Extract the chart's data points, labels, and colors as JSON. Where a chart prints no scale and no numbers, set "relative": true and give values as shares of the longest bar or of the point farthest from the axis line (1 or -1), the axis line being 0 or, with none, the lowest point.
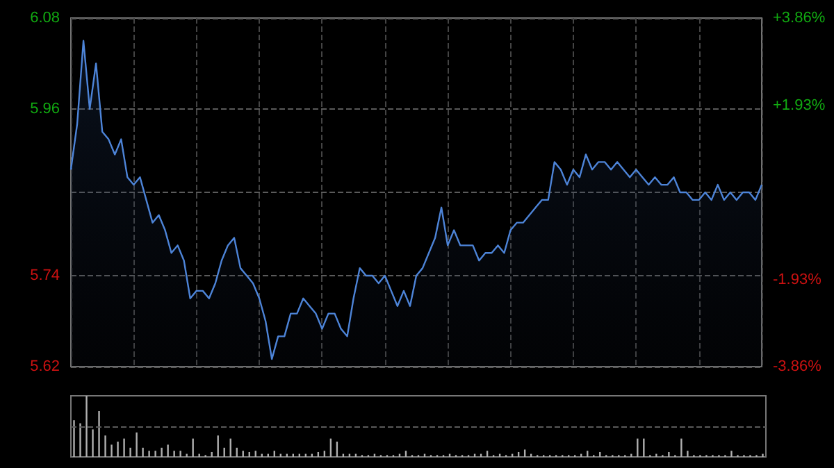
{
  "chart_data": [
    {
      "type": "area",
      "categories": [
        null,
        null,
        null,
        null,
        null,
        null,
        null,
        null,
        null,
        null,
        null,
        null,
        null,
        null,
        null,
        null,
        null,
        null,
        null,
        null,
        null,
        null,
        null,
        null,
        null,
        null,
        null,
        null,
        null,
        null,
        null,
        null,
        null,
        null,
        null,
        null,
        null,
        null,
        null,
        null,
        null,
        null,
        null,
        null,
        null,
        null,
        null,
        null,
        null,
        null,
        null,
        null,
        null,
        null,
        null,
        null,
        null,
        null,
        null,
        null,
        null,
        null,
        null,
        null,
        null,
        null,
        null,
        null,
        null,
        null,
        null,
        null,
        null,
        null,
        null,
        null,
        null,
        null,
        null,
        null,
        null,
        null,
        null,
        null,
        null,
        null,
        null,
        null,
        null,
        null,
        null,
        null,
        null,
        null,
        null,
        null,
        null,
        null,
        null,
        null,
        null,
        null,
        null,
        null,
        null,
        null,
        null,
        null,
        null,
        null,
        null
      ],
      "series": [
        {
          "color": "#4d84d8",
          "values": [
            5.88,
            5.94,
            6.05,
            5.96,
            6.02,
            5.93,
            5.92,
            5.9,
            5.92,
            5.87,
            5.86,
            5.87,
            5.84,
            5.81,
            5.82,
            5.8,
            5.77,
            5.78,
            5.76,
            5.71,
            5.72,
            5.72,
            5.71,
            5.73,
            5.76,
            5.78,
            5.79,
            5.75,
            5.74,
            5.73,
            5.71,
            5.68,
            5.63,
            5.66,
            5.66,
            5.69,
            5.69,
            5.71,
            5.7,
            5.69,
            5.67,
            5.69,
            5.69,
            5.67,
            5.66,
            5.71,
            5.75,
            5.74,
            5.74,
            5.73,
            5.74,
            5.72,
            5.7,
            5.72,
            5.7,
            5.74,
            5.75,
            5.77,
            5.79,
            5.83,
            5.78,
            5.8,
            5.78,
            5.78,
            5.78,
            5.76,
            5.77,
            5.77,
            5.78,
            5.77,
            5.8,
            5.81,
            5.81,
            5.82,
            5.83,
            5.84,
            5.84,
            5.89,
            5.88,
            5.86,
            5.88,
            5.87,
            5.9,
            5.88,
            5.89,
            5.89,
            5.88,
            5.89,
            5.88,
            5.87,
            5.88,
            5.87,
            5.86,
            5.87,
            5.86,
            5.86,
            5.87,
            5.85,
            5.85,
            5.84,
            5.84,
            5.85,
            5.84,
            5.86,
            5.84,
            5.85,
            5.84,
            5.85,
            5.85,
            5.84,
            5.86
          ]
        }
      ],
      "ylim": [
        5.62,
        6.08
      ],
      "yticks": [
        5.62,
        5.74,
        {
          "value": 5.85,
          "label": null
        },
        5.96,
        6.08
      ],
      "y2lim": [
        -3.86,
        3.86
      ],
      "y2ticks": [
        {
          "value": -3.86,
          "label": "-3.86%"
        },
        {
          "value": -1.93,
          "label": "-1.93%"
        },
        {
          "value": 0,
          "label": null
        },
        {
          "value": 1.93,
          "label": "+1.93%"
        },
        {
          "value": 3.86,
          "label": "+3.86%"
        }
      ],
      "grid": true,
      "marker": "none"
    },
    {
      "type": "bar",
      "relative": true,
      "ref_lines": [
        {
          "axis": "y",
          "value": 0.5
        }
      ],
      "categories": [
        null,
        null,
        null,
        null,
        null,
        null,
        null,
        null,
        null,
        null,
        null,
        null,
        null,
        null,
        null,
        null,
        null,
        null,
        null,
        null,
        null,
        null,
        null,
        null,
        null,
        null,
        null,
        null,
        null,
        null,
        null,
        null,
        null,
        null,
        null,
        null,
        null,
        null,
        null,
        null,
        null,
        null,
        null,
        null,
        null,
        null,
        null,
        null,
        null,
        null,
        null,
        null,
        null,
        null,
        null,
        null,
        null,
        null,
        null,
        null,
        null,
        null,
        null,
        null,
        null,
        null,
        null,
        null,
        null,
        null,
        null,
        null,
        null,
        null,
        null,
        null,
        null,
        null,
        null,
        null,
        null,
        null,
        null,
        null,
        null,
        null,
        null,
        null,
        null,
        null,
        null,
        null,
        null,
        null,
        null,
        null,
        null,
        null,
        null,
        null,
        null,
        null,
        null,
        null,
        null,
        null,
        null,
        null,
        null,
        null,
        null
      ],
      "series": [
        {
          "color": "#b0b0b0",
          "values": [
            0.6,
            0.55,
            1,
            0.45,
            0.75,
            0.35,
            0.2,
            0.25,
            0.3,
            0.15,
            0.4,
            0.15,
            0.1,
            0.1,
            0.15,
            0.2,
            0.1,
            0.1,
            0.05,
            0.3,
            0.05,
            0.03,
            0.08,
            0.35,
            0.15,
            0.3,
            0.15,
            0.1,
            0.08,
            0.1,
            0.05,
            0.05,
            0.1,
            0.05,
            0.05,
            0.05,
            0.05,
            0.05,
            0.05,
            0.08,
            0.1,
            0.3,
            0.25,
            0.05,
            0.05,
            0.05,
            0.03,
            0.03,
            0.05,
            0.03,
            0.03,
            0.03,
            0.05,
            0.1,
            0.03,
            0.03,
            0.05,
            0.03,
            0.03,
            0.03,
            0.05,
            0.03,
            0.03,
            0.03,
            0.05,
            0.05,
            0.1,
            0.03,
            0.05,
            0.03,
            0.05,
            0.08,
            0.12,
            0.05,
            0.03,
            0.03,
            0.03,
            0.03,
            0.03,
            0.03,
            0.03,
            0.05,
            0.1,
            0.03,
            0.08,
            0.03,
            0.03,
            0.03,
            0.03,
            0.05,
            0.3,
            0.3,
            0.03,
            0.05,
            0.03,
            0.08,
            0.03,
            0.3,
            0.1,
            0.03,
            0.03,
            0.03,
            0.03,
            0.03,
            0.03,
            0.1,
            0.03,
            0.03,
            0.03,
            0.03,
            0.05
          ]
        }
      ]
    }
  ]
}
